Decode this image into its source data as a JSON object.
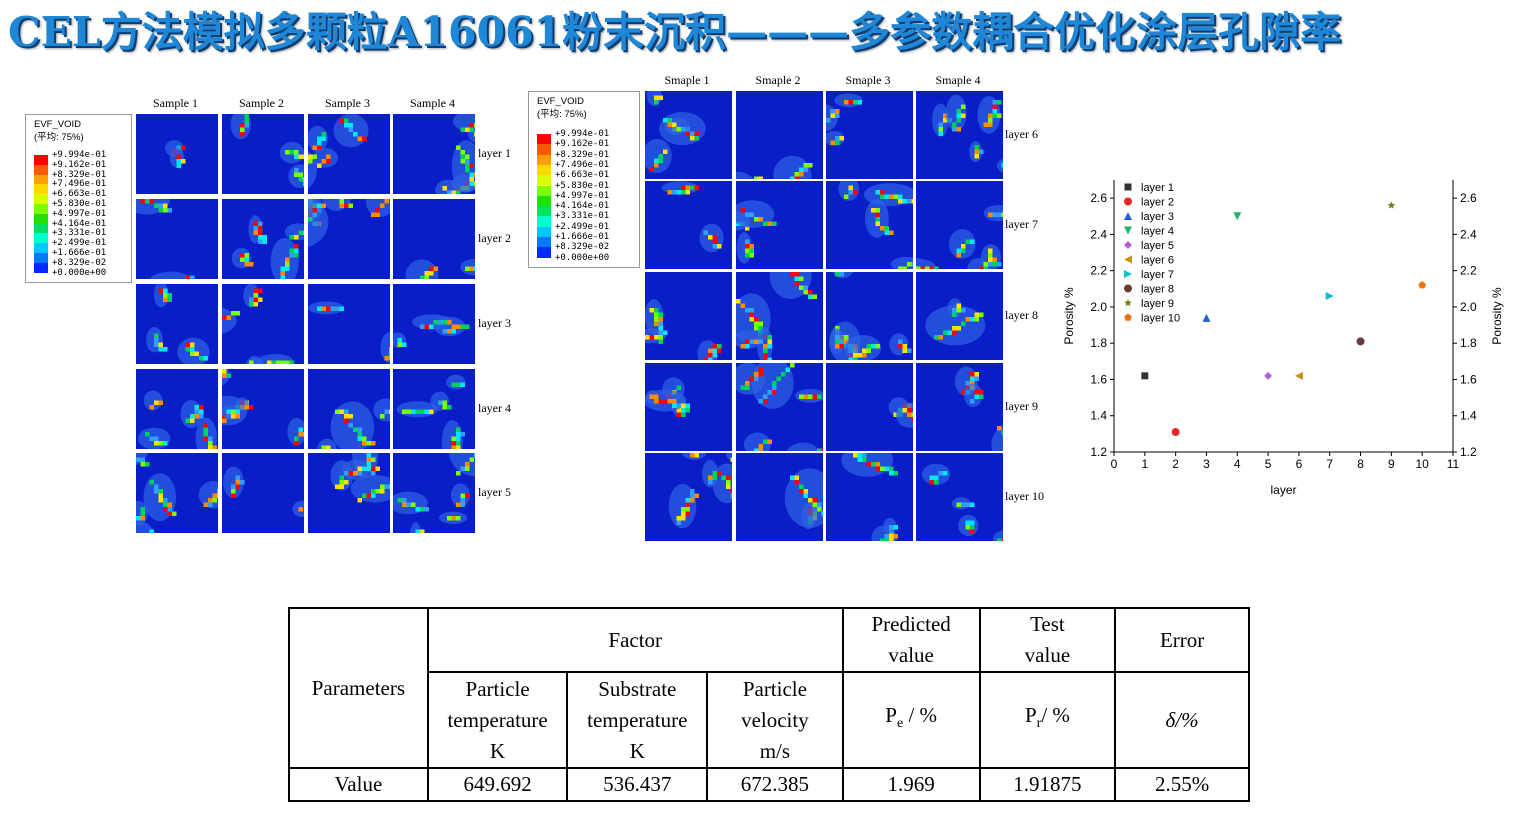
{
  "title": "CEL方法模拟多颗粒A16061粉末沉积———多参数耦合优化涂层孔隙率",
  "left_panel": {
    "columns": [
      "Sample 1",
      "Sample 2",
      "Sample 3",
      "Sample 4"
    ],
    "rows": [
      "layer 1",
      "layer 2",
      "layer 3",
      "layer 4",
      "layer 5"
    ]
  },
  "mid_panel": {
    "columns": [
      "Smaple 1",
      "Smaple 2",
      "Smaple 3",
      "Smaple 4"
    ],
    "rows": [
      "layer 6",
      "layer 7",
      "layer 8",
      "layer 9",
      "layer 10"
    ]
  },
  "legend": {
    "title": "EVF_VOID",
    "subtitle": "(平均: 75%)",
    "levels": [
      "+9.994e-01",
      "+9.162e-01",
      "+8.329e-01",
      "+7.496e-01",
      "+6.663e-01",
      "+5.830e-01",
      "+4.997e-01",
      "+4.164e-01",
      "+3.331e-01",
      "+2.499e-01",
      "+1.666e-01",
      "+8.329e-02",
      "+0.000e+00"
    ],
    "colors": [
      "#ff0000",
      "#ff5a00",
      "#ffa000",
      "#ffd800",
      "#d8ff00",
      "#7cff00",
      "#20e000",
      "#00e060",
      "#00ffd0",
      "#00c8ff",
      "#0078ff",
      "#0028ff",
      "#0000c8"
    ]
  },
  "chart_data": {
    "type": "scatter",
    "title": "",
    "xlabel": "layer",
    "ylabel": "Porosity %",
    "ylabel_right": "Porosity %",
    "xlim": [
      0,
      11
    ],
    "ylim": [
      1.2,
      2.7
    ],
    "xticks": [
      0,
      1,
      2,
      3,
      4,
      5,
      6,
      7,
      8,
      9,
      10,
      11
    ],
    "yticks": [
      1.2,
      1.4,
      1.6,
      1.8,
      2.0,
      2.2,
      2.4,
      2.6
    ],
    "ytick_labels": [
      "1.2",
      "1.4",
      "1.6",
      "1.8",
      "2.0",
      "2.2",
      "2.4",
      "2.6"
    ],
    "legend_placement": "top-left",
    "series": [
      {
        "name": "layer 1",
        "x": 1,
        "y": 1.62,
        "marker": "square",
        "color": "#333333"
      },
      {
        "name": "layer 2",
        "x": 2,
        "y": 1.31,
        "marker": "circle",
        "color": "#e8262a"
      },
      {
        "name": "layer 3",
        "x": 3,
        "y": 1.94,
        "marker": "triangle-up",
        "color": "#1f5fd6"
      },
      {
        "name": "layer 4",
        "x": 4,
        "y": 2.5,
        "marker": "triangle-down",
        "color": "#1fb36b"
      },
      {
        "name": "layer 5",
        "x": 5,
        "y": 1.62,
        "marker": "diamond",
        "color": "#b35fd6"
      },
      {
        "name": "layer 6",
        "x": 6,
        "y": 1.62,
        "marker": "triangle-left",
        "color": "#c89010"
      },
      {
        "name": "layer 7",
        "x": 7,
        "y": 2.06,
        "marker": "triangle-right",
        "color": "#10c0c8"
      },
      {
        "name": "layer 8",
        "x": 8,
        "y": 1.81,
        "marker": "circle",
        "color": "#6b3a3a"
      },
      {
        "name": "layer 9",
        "x": 9,
        "y": 2.56,
        "marker": "star",
        "color": "#7a7a10"
      },
      {
        "name": "layer 10",
        "x": 10,
        "y": 2.12,
        "marker": "pentagon",
        "color": "#f07010"
      }
    ]
  },
  "table": {
    "parameters": "Parameters",
    "factor": "Factor",
    "predicted_1": "Predicted",
    "predicted_2": "value",
    "test_1": "Test",
    "test_2": "value",
    "error": "Error",
    "pt_1": "Particle",
    "pt_2": "temperature",
    "pt_3": "K",
    "st_1": "Substrate",
    "st_2": "temperature",
    "st_3": "K",
    "pv_1": "Particle",
    "pv_2": "velocity",
    "pv_3": "m/s",
    "pe_main": "P",
    "pe_sub": "e",
    "pe_unit": " / %",
    "pr_main": "P",
    "pr_sub": "r",
    "pr_unit": "/ %",
    "delta": "δ/%",
    "value_label": "Value",
    "values": [
      "649.692",
      "536.437",
      "672.385",
      "1.969",
      "1.91875",
      "2.55%"
    ]
  }
}
